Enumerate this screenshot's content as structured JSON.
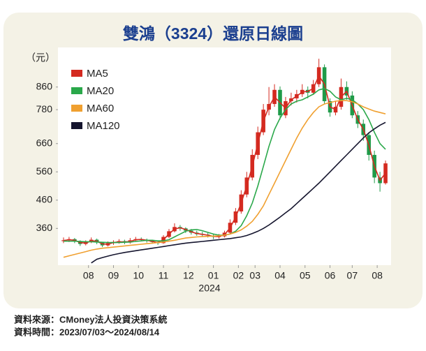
{
  "chart_data": {
    "type": "candlestick",
    "title": "雙鴻（3324）還原日線圖",
    "y_unit": "（元）",
    "x_year": "2024",
    "source": "資料來源：CMoney法人投資決策系統",
    "period": "資料時間：2023/07/03～2024/08/14",
    "up_color": "#d42a20",
    "down_color": "#1f9a48",
    "ylim": [
      230,
      1000
    ],
    "yticks": [
      360,
      460,
      560,
      660,
      780,
      860
    ],
    "xlim": [
      -1,
      59
    ],
    "xticks": [
      {
        "value": 4.5,
        "label": "08"
      },
      {
        "value": 9,
        "label": "09"
      },
      {
        "value": 13.5,
        "label": "10"
      },
      {
        "value": 18,
        "label": "11"
      },
      {
        "value": 22.5,
        "label": "12"
      },
      {
        "value": 27,
        "label": "01"
      },
      {
        "value": 31.5,
        "label": "02"
      },
      {
        "value": 34.5,
        "label": "03"
      },
      {
        "value": 39,
        "label": "04"
      },
      {
        "value": 43.5,
        "label": "05"
      },
      {
        "value": 48,
        "label": "06"
      },
      {
        "value": 52,
        "label": "07"
      },
      {
        "value": 56.5,
        "label": "08"
      }
    ],
    "open": [
      315,
      318,
      322,
      315,
      305,
      312,
      320,
      310,
      300,
      308,
      312,
      315,
      310,
      318,
      322,
      320,
      316,
      312,
      308,
      330,
      350,
      365,
      360,
      352,
      345,
      340,
      338,
      335,
      330,
      332,
      345,
      380,
      420,
      480,
      540,
      620,
      700,
      780,
      800,
      850,
      760,
      810,
      820,
      835,
      850,
      840,
      870,
      930,
      810,
      770,
      790,
      860,
      830,
      760,
      730,
      690,
      620,
      540,
      520
    ],
    "high": [
      328,
      330,
      326,
      318,
      318,
      328,
      324,
      312,
      314,
      318,
      322,
      320,
      326,
      330,
      328,
      324,
      320,
      316,
      336,
      358,
      378,
      372,
      364,
      358,
      352,
      348,
      344,
      340,
      340,
      352,
      392,
      432,
      495,
      560,
      640,
      720,
      800,
      860,
      870,
      862,
      825,
      840,
      850,
      870,
      862,
      885,
      960,
      940,
      820,
      810,
      890,
      880,
      845,
      775,
      745,
      700,
      635,
      560,
      600
    ],
    "low": [
      308,
      312,
      308,
      298,
      300,
      308,
      304,
      294,
      296,
      302,
      306,
      304,
      306,
      314,
      314,
      310,
      306,
      302,
      306,
      326,
      346,
      352,
      344,
      338,
      334,
      332,
      328,
      322,
      324,
      328,
      340,
      372,
      412,
      470,
      530,
      605,
      690,
      760,
      790,
      745,
      750,
      795,
      805,
      825,
      820,
      832,
      860,
      800,
      755,
      760,
      780,
      815,
      750,
      715,
      670,
      600,
      520,
      490,
      515
    ],
    "close": [
      318,
      322,
      315,
      305,
      312,
      320,
      310,
      300,
      308,
      312,
      315,
      310,
      318,
      322,
      320,
      316,
      312,
      308,
      330,
      350,
      365,
      360,
      352,
      345,
      340,
      338,
      335,
      330,
      332,
      345,
      380,
      420,
      480,
      540,
      620,
      700,
      780,
      800,
      850,
      760,
      810,
      820,
      835,
      850,
      840,
      870,
      930,
      810,
      770,
      790,
      860,
      830,
      760,
      730,
      690,
      620,
      540,
      520,
      590
    ],
    "series": [
      {
        "name": "MA5",
        "color": "#d42a20",
        "values": [
          317,
          320,
          318,
          310,
          308,
          316,
          315,
          305,
          304,
          310,
          313,
          312,
          314,
          320,
          321,
          318,
          314,
          310,
          320,
          340,
          358,
          362,
          356,
          348,
          342,
          339,
          336,
          332,
          331,
          338,
          362,
          400,
          450,
          510,
          580,
          660,
          740,
          790,
          825,
          805,
          785,
          815,
          828,
          842,
          845,
          855,
          900,
          870,
          790,
          780,
          825,
          845,
          795,
          745,
          710,
          655,
          580,
          530,
          555
        ]
      },
      {
        "name": "MA20",
        "color": "#2aa84a",
        "values": [
          315,
          315,
          315,
          314,
          313,
          313,
          312,
          311,
          310,
          310,
          310,
          311,
          312,
          314,
          316,
          318,
          318,
          316,
          316,
          320,
          330,
          340,
          350,
          355,
          356,
          352,
          346,
          340,
          336,
          336,
          340,
          350,
          370,
          405,
          450,
          510,
          580,
          650,
          710,
          750,
          780,
          800,
          810,
          815,
          825,
          835,
          850,
          855,
          845,
          825,
          815,
          820,
          815,
          800,
          780,
          745,
          700,
          660,
          640
        ]
      },
      {
        "name": "MA60",
        "color": "#f0a030",
        "values": [
          258,
          263,
          268,
          273,
          278,
          283,
          287,
          290,
          292,
          294,
          296,
          298,
          300,
          302,
          304,
          306,
          308,
          310,
          312,
          315,
          318,
          322,
          326,
          328,
          330,
          331,
          332,
          333,
          334,
          336,
          340,
          346,
          355,
          368,
          385,
          410,
          440,
          480,
          520,
          560,
          600,
          640,
          680,
          715,
          745,
          770,
          790,
          800,
          805,
          810,
          812,
          812,
          808,
          800,
          790,
          782,
          775,
          770,
          765
        ]
      },
      {
        "name": "MA120",
        "color": "#15152e",
        "values": [
          null,
          null,
          null,
          null,
          null,
          238,
          251,
          257,
          262,
          267,
          271,
          275,
          278,
          281,
          284,
          287,
          290,
          293,
          296,
          299,
          302,
          305,
          308,
          310,
          312,
          314,
          316,
          318,
          320,
          322,
          324,
          327,
          330,
          335,
          342,
          350,
          360,
          372,
          386,
          400,
          415,
          430,
          448,
          466,
          484,
          502,
          520,
          540,
          560,
          580,
          600,
          620,
          640,
          660,
          680,
          698,
          712,
          725,
          735
        ]
      }
    ]
  }
}
